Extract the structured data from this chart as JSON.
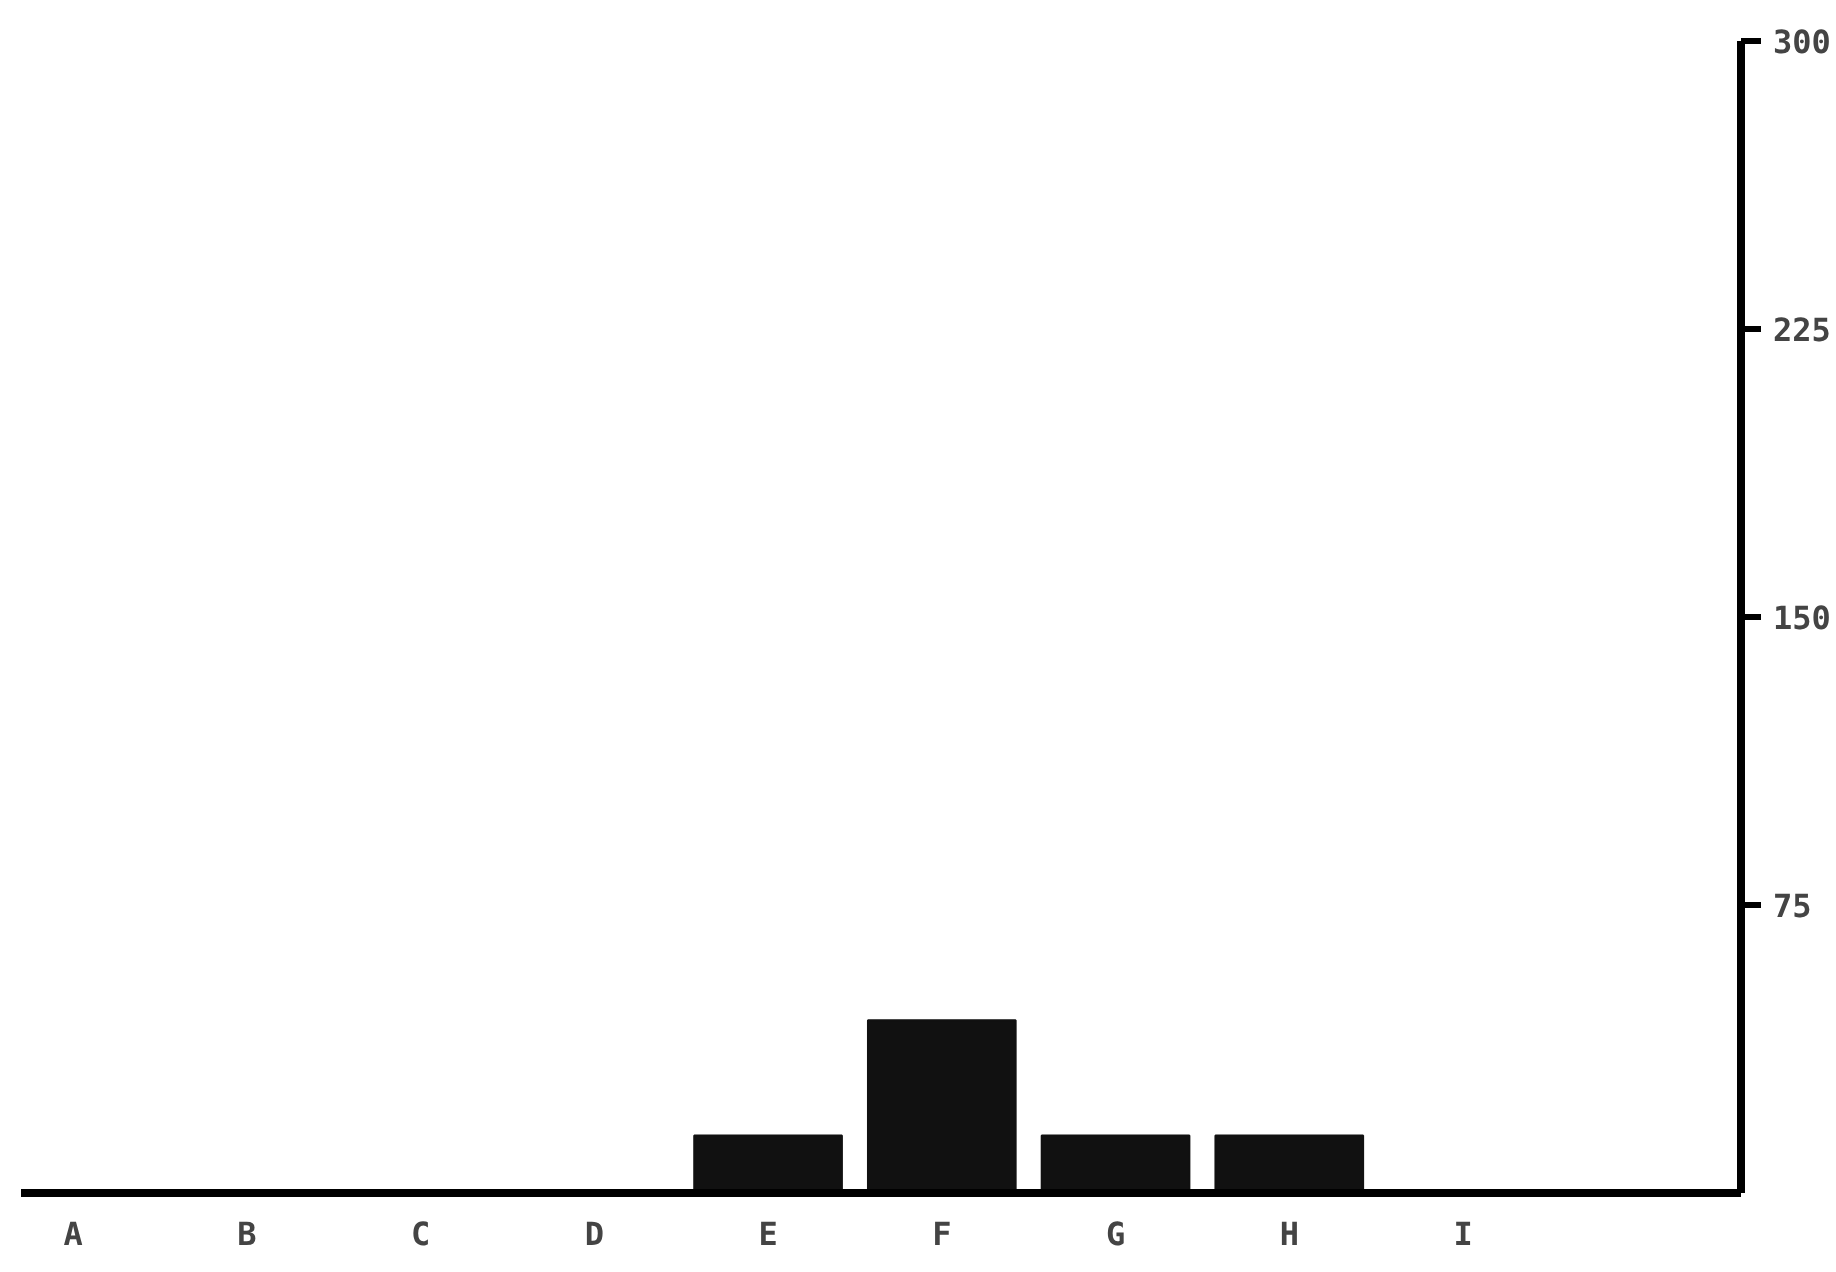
{
  "chart_data": {
    "type": "bar",
    "categories": [
      "A",
      "B",
      "C",
      "D",
      "E",
      "F",
      "G",
      "H",
      "I"
    ],
    "values": [
      0,
      0,
      0,
      0,
      15,
      45,
      15,
      15,
      0
    ],
    "color": "#111111",
    "ylim": [
      0,
      300
    ],
    "yticks": [
      75,
      150,
      225,
      300
    ],
    "grid": false
  }
}
